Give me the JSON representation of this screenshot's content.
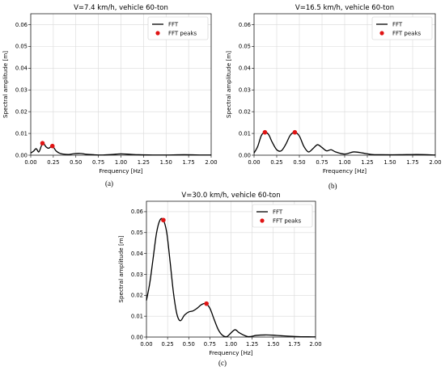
{
  "chart_data": [
    {
      "type": "line",
      "title": "V=7.4 km/h, vehicle 60-ton",
      "xlabel": "Frequency [Hz]",
      "ylabel": "Spectral amplitude [m]",
      "xlim": [
        0,
        2.0
      ],
      "ylim": [
        0,
        0.065
      ],
      "xticks": [
        "0.00",
        "0.25",
        "0.50",
        "0.75",
        "1.00",
        "1.25",
        "1.50",
        "1.75",
        "2.00"
      ],
      "yticks": [
        "0.00",
        "0.01",
        "0.02",
        "0.03",
        "0.04",
        "0.05",
        "0.06"
      ],
      "grid": true,
      "legend_position": "top-right",
      "series": [
        {
          "name": "FFT",
          "color": "#000000",
          "x": [
            0.0,
            0.03,
            0.06,
            0.09,
            0.12,
            0.14,
            0.17,
            0.2,
            0.24,
            0.28,
            0.32,
            0.36,
            0.42,
            0.48,
            0.55,
            0.62,
            0.7,
            0.8,
            0.9,
            1.0,
            1.1,
            1.2,
            1.35,
            1.5,
            1.7,
            1.9,
            2.0
          ],
          "y": [
            0.001,
            0.0018,
            0.003,
            0.0015,
            0.0045,
            0.0055,
            0.0038,
            0.0032,
            0.0042,
            0.002,
            0.0009,
            0.0005,
            0.0003,
            0.0007,
            0.0008,
            0.0004,
            0.0002,
            0.0001,
            0.0003,
            0.0006,
            0.0004,
            0.0002,
            0.0001,
            0.0001,
            0.0002,
            0.0001,
            0.0001
          ]
        },
        {
          "name": "FFT peaks",
          "color": "#e01414",
          "x": [
            0.13,
            0.24
          ],
          "y": [
            0.0055,
            0.0042
          ]
        }
      ]
    },
    {
      "type": "line",
      "title": "V=16.5 km/h, vehicle 60-ton",
      "xlabel": "Frequency [Hz]",
      "ylabel": "Spectral amplitude [m]",
      "xlim": [
        0,
        2.0
      ],
      "ylim": [
        0,
        0.065
      ],
      "xticks": [
        "0.00",
        "0.25",
        "0.50",
        "0.75",
        "1.00",
        "1.25",
        "1.50",
        "1.75",
        "2.00"
      ],
      "yticks": [
        "0.00",
        "0.01",
        "0.02",
        "0.03",
        "0.04",
        "0.05",
        "0.06"
      ],
      "grid": true,
      "legend_position": "top-right",
      "series": [
        {
          "name": "FFT",
          "color": "#000000",
          "x": [
            0.0,
            0.04,
            0.08,
            0.12,
            0.16,
            0.2,
            0.25,
            0.3,
            0.35,
            0.4,
            0.45,
            0.5,
            0.55,
            0.6,
            0.65,
            0.7,
            0.75,
            0.8,
            0.85,
            0.9,
            1.0,
            1.1,
            1.2,
            1.3,
            1.4,
            1.6,
            1.8,
            2.0
          ],
          "y": [
            0.001,
            0.004,
            0.009,
            0.0105,
            0.0095,
            0.006,
            0.0025,
            0.002,
            0.005,
            0.0092,
            0.0105,
            0.0088,
            0.004,
            0.0015,
            0.003,
            0.0048,
            0.0035,
            0.002,
            0.0025,
            0.0015,
            0.0005,
            0.0015,
            0.001,
            0.0003,
            0.0002,
            0.0002,
            0.0003,
            0.0001
          ]
        },
        {
          "name": "FFT peaks",
          "color": "#e01414",
          "x": [
            0.12,
            0.45
          ],
          "y": [
            0.0105,
            0.0105
          ]
        }
      ]
    },
    {
      "type": "line",
      "title": "V=30.0 km/h, vehicle 60-ton",
      "xlabel": "Frequency [Hz]",
      "ylabel": "Spectral amplitude [m]",
      "xlim": [
        0,
        2.0
      ],
      "ylim": [
        0,
        0.065
      ],
      "xticks": [
        "0.00",
        "0.25",
        "0.50",
        "0.75",
        "1.00",
        "1.25",
        "1.50",
        "1.75",
        "2.00"
      ],
      "yticks": [
        "0.00",
        "0.01",
        "0.02",
        "0.03",
        "0.04",
        "0.05",
        "0.06"
      ],
      "grid": true,
      "legend_position": "top-right",
      "series": [
        {
          "name": "FFT",
          "color": "#000000",
          "x": [
            0.0,
            0.04,
            0.08,
            0.12,
            0.16,
            0.2,
            0.24,
            0.28,
            0.32,
            0.36,
            0.4,
            0.45,
            0.5,
            0.55,
            0.6,
            0.65,
            0.7,
            0.75,
            0.8,
            0.85,
            0.9,
            0.95,
            1.0,
            1.05,
            1.1,
            1.2,
            1.3,
            1.4,
            1.5,
            1.6,
            1.8,
            2.0
          ],
          "y": [
            0.0175,
            0.026,
            0.038,
            0.05,
            0.056,
            0.056,
            0.05,
            0.036,
            0.021,
            0.011,
            0.0078,
            0.0105,
            0.012,
            0.0125,
            0.0138,
            0.0155,
            0.016,
            0.0138,
            0.0085,
            0.0035,
            0.0008,
            0.0002,
            0.002,
            0.0035,
            0.002,
            0.0002,
            0.0008,
            0.001,
            0.0009,
            0.0006,
            0.0002,
            0.0001
          ]
        },
        {
          "name": "FFT peaks",
          "color": "#e01414",
          "x": [
            0.2,
            0.71
          ],
          "y": [
            0.056,
            0.016
          ]
        }
      ]
    }
  ],
  "captions": [
    "(a)",
    "(b)",
    "(c)"
  ]
}
